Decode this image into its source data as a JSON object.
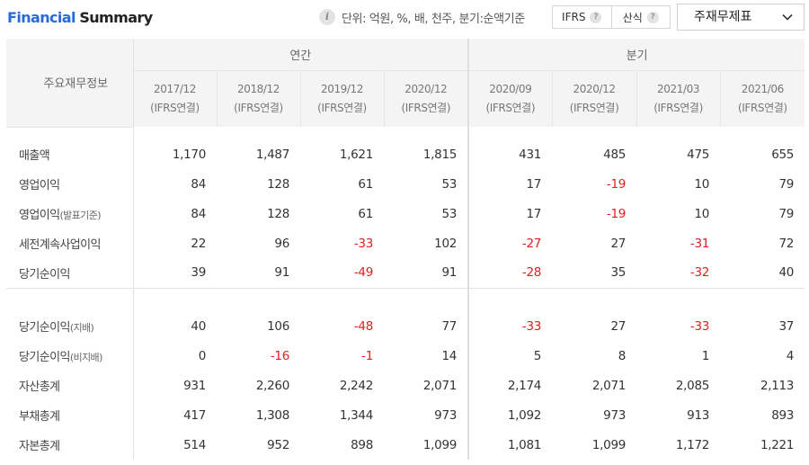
{
  "header": {
    "title_part1": "Financial",
    "title_part2": "Summary",
    "info_icon": "info-icon",
    "unit_text": "단위: 억원, %, 배, 천주, 분기:순액기준",
    "toggles": [
      {
        "label": "IFRS",
        "icon": "question-icon"
      },
      {
        "label": "산식",
        "icon": "question-icon"
      }
    ],
    "select_value": "주재무제표"
  },
  "table": {
    "corner_label": "주요재무정보",
    "groups": [
      {
        "label": "연간"
      },
      {
        "label": "분기"
      }
    ],
    "columns": [
      {
        "period": "2017/12",
        "basis": "(IFRS연결)"
      },
      {
        "period": "2018/12",
        "basis": "(IFRS연결)"
      },
      {
        "period": "2019/12",
        "basis": "(IFRS연결)"
      },
      {
        "period": "2020/12",
        "basis": "(IFRS연결)"
      },
      {
        "period": "2020/09",
        "basis": "(IFRS연결)"
      },
      {
        "period": "2020/12",
        "basis": "(IFRS연결)"
      },
      {
        "period": "2021/03",
        "basis": "(IFRS연결)"
      },
      {
        "period": "2021/06",
        "basis": "(IFRS연결)"
      }
    ],
    "rows": [
      {
        "label": "매출액",
        "sub": "",
        "values": [
          "1,170",
          "1,487",
          "1,621",
          "1,815",
          "431",
          "485",
          "475",
          "655"
        ]
      },
      {
        "label": "영업이익",
        "sub": "",
        "values": [
          "84",
          "128",
          "61",
          "53",
          "17",
          "-19",
          "10",
          "79"
        ]
      },
      {
        "label": "영업이익",
        "sub": "(발표기준)",
        "values": [
          "84",
          "128",
          "61",
          "53",
          "17",
          "-19",
          "10",
          "79"
        ]
      },
      {
        "label": "세전계속사업이익",
        "sub": "",
        "values": [
          "22",
          "96",
          "-33",
          "102",
          "-27",
          "27",
          "-31",
          "72"
        ]
      },
      {
        "label": "당기순이익",
        "sub": "",
        "values": [
          "39",
          "91",
          "-49",
          "91",
          "-28",
          "35",
          "-32",
          "40"
        ]
      },
      {
        "label": "당기순이익",
        "sub": "(지배)",
        "values": [
          "40",
          "106",
          "-48",
          "77",
          "-33",
          "27",
          "-33",
          "37"
        ]
      },
      {
        "label": "당기순이익",
        "sub": "(비지배)",
        "values": [
          "0",
          "-16",
          "-1",
          "14",
          "5",
          "8",
          "1",
          "4"
        ]
      },
      {
        "label": "자산총계",
        "sub": "",
        "values": [
          "931",
          "2,260",
          "2,242",
          "2,071",
          "2,174",
          "2,071",
          "2,085",
          "2,113"
        ]
      },
      {
        "label": "부채총계",
        "sub": "",
        "values": [
          "417",
          "1,308",
          "1,344",
          "973",
          "1,092",
          "973",
          "913",
          "893"
        ]
      },
      {
        "label": "자본총계",
        "sub": "",
        "values": [
          "514",
          "952",
          "898",
          "1,099",
          "1,081",
          "1,099",
          "1,172",
          "1,221"
        ]
      }
    ]
  },
  "colors": {
    "accent": "#2a6ad8",
    "negative": "#e02020",
    "header_bg": "#f4f4f4"
  }
}
